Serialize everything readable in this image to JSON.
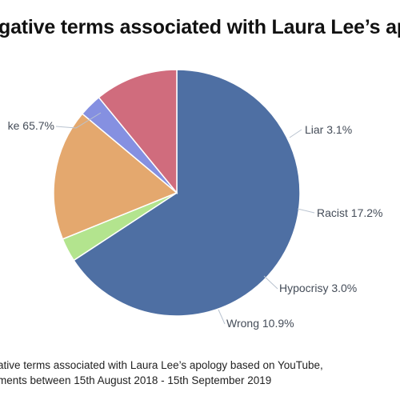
{
  "title": "gative terms associated with Laura Lee’s ap",
  "caption": {
    "line1": "ative terms associated with Laura Lee’s apology based on YouTube,",
    "line2": "ments between 15th August 2018 - 15th September 2019"
  },
  "chart_data": {
    "type": "pie",
    "title": "gative terms associated with Laura Lee’s ap",
    "slices": [
      {
        "label": "ke",
        "value": 65.7,
        "display": "ke 65.7%",
        "color": "#4e6fa3"
      },
      {
        "label": "Liar",
        "value": 3.1,
        "display": "Liar 3.1%",
        "color": "#b3e48e"
      },
      {
        "label": "Racist",
        "value": 17.2,
        "display": "Racist 17.2%",
        "color": "#e4a86e"
      },
      {
        "label": "Hypocrisy",
        "value": 3.0,
        "display": "Hypocrisy 3.0%",
        "color": "#8590e1"
      },
      {
        "label": "Wrong",
        "value": 10.9,
        "display": "Wrong 10.9%",
        "color": "#d06c7d"
      }
    ],
    "start_angle_deg": 270,
    "direction": "clockwise"
  }
}
